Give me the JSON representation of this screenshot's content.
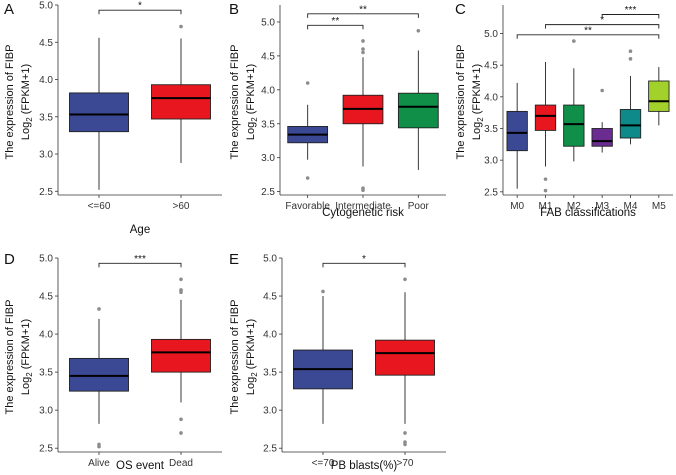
{
  "chart_data": [
    {
      "panel": "A",
      "type": "box",
      "title": "",
      "xlabel": "Age",
      "ylabel_line1": "The expression of FIBP",
      "ylabel_line2": "Log",
      "ylabel_sub": "2",
      "ylabel_tail": " (FPKM+1)",
      "ylim": [
        2.45,
        5.0
      ],
      "yticks": [
        2.5,
        3.0,
        3.5,
        4.0,
        4.5,
        5.0
      ],
      "groups": [
        {
          "label": "<=60",
          "color": "#3b4994",
          "min": 2.52,
          "q1": 3.3,
          "median": 3.53,
          "q3": 3.82,
          "max": 4.56,
          "outliers": []
        },
        {
          "label": ">60",
          "color": "#e8171f",
          "min": 2.88,
          "q1": 3.47,
          "median": 3.75,
          "q3": 3.93,
          "max": 4.55,
          "outliers": [
            4.71
          ]
        }
      ],
      "brackets": [
        {
          "from": 0,
          "to": 1,
          "y": 4.93,
          "label": "*",
          "tier": 0
        }
      ]
    },
    {
      "panel": "B",
      "type": "box",
      "title": "",
      "xlabel": "Cytogenetic risk",
      "ylabel_line1": "The expression of FIBP",
      "ylabel_line2": "Log",
      "ylabel_sub": "2",
      "ylabel_tail": " (FPKM+1)",
      "ylim": [
        2.45,
        5.25
      ],
      "yticks": [
        2.5,
        3.0,
        3.5,
        4.0,
        4.5,
        5.0
      ],
      "groups": [
        {
          "label": "Favorable",
          "color": "#3b4994",
          "min": 2.97,
          "q1": 3.22,
          "median": 3.34,
          "q3": 3.46,
          "max": 3.78,
          "outliers": [
            4.1,
            2.7
          ]
        },
        {
          "label": "Intermediate",
          "color": "#e8171f",
          "min": 2.87,
          "q1": 3.5,
          "median": 3.72,
          "q3": 3.92,
          "max": 4.48,
          "outliers": [
            4.55,
            4.6,
            4.72,
            2.55,
            2.52
          ]
        },
        {
          "label": "Poor",
          "color": "#0f8f48",
          "min": 2.82,
          "q1": 3.44,
          "median": 3.75,
          "q3": 3.95,
          "max": 4.58,
          "outliers": [
            4.87
          ]
        }
      ],
      "brackets": [
        {
          "from": 0,
          "to": 1,
          "y": 4.95,
          "label": "**",
          "tier": 0
        },
        {
          "from": 0,
          "to": 2,
          "y": 5.12,
          "label": "**",
          "tier": 1
        }
      ]
    },
    {
      "panel": "C",
      "type": "box",
      "title": "",
      "xlabel": "FAB classifications",
      "ylabel_line1": "The expression of FIBP",
      "ylabel_line2": "Log",
      "ylabel_sub": "2",
      "ylabel_tail": " (FPKM+1)",
      "ylim": [
        2.45,
        5.45
      ],
      "yticks": [
        2.5,
        3.0,
        3.5,
        4.0,
        4.5,
        5.0
      ],
      "groups": [
        {
          "label": "M0",
          "color": "#3b4994",
          "min": 2.55,
          "q1": 3.15,
          "median": 3.43,
          "q3": 3.77,
          "max": 4.22,
          "outliers": []
        },
        {
          "label": "M1",
          "color": "#e8171f",
          "min": 2.9,
          "q1": 3.47,
          "median": 3.7,
          "q3": 3.87,
          "max": 4.55,
          "outliers": [
            2.7,
            2.52
          ]
        },
        {
          "label": "M2",
          "color": "#0f8f48",
          "min": 2.98,
          "q1": 3.22,
          "median": 3.57,
          "q3": 3.87,
          "max": 4.45,
          "outliers": [
            4.88
          ]
        },
        {
          "label": "M3",
          "color": "#6a2c91",
          "min": 3.12,
          "q1": 3.22,
          "median": 3.3,
          "q3": 3.5,
          "max": 3.6,
          "outliers": [
            4.1
          ]
        },
        {
          "label": "M4",
          "color": "#0f8a8a",
          "min": 3.25,
          "q1": 3.35,
          "median": 3.55,
          "q3": 3.8,
          "max": 4.33,
          "outliers": [
            4.72,
            4.6
          ]
        },
        {
          "label": "M5",
          "color": "#a3d12c",
          "min": 3.55,
          "q1": 3.77,
          "median": 3.93,
          "q3": 4.25,
          "max": 4.47,
          "outliers": []
        }
      ],
      "brackets": [
        {
          "from": 0,
          "to": 5,
          "y": 4.98,
          "label": "**",
          "tier": 0
        },
        {
          "from": 1,
          "to": 5,
          "y": 5.14,
          "label": "*",
          "tier": 1
        },
        {
          "from": 3,
          "to": 5,
          "y": 5.3,
          "label": "***",
          "tier": 2
        }
      ]
    },
    {
      "panel": "D",
      "type": "box",
      "title": "",
      "xlabel": "OS event",
      "ylabel_line1": "The expression of FIBP",
      "ylabel_line2": "Log",
      "ylabel_sub": "2",
      "ylabel_tail": " (FPKM+1)",
      "ylim": [
        2.45,
        5.0
      ],
      "yticks": [
        2.5,
        3.0,
        3.5,
        4.0,
        4.5,
        5.0
      ],
      "groups": [
        {
          "label": "Alive",
          "color": "#3b4994",
          "min": 2.82,
          "q1": 3.25,
          "median": 3.45,
          "q3": 3.68,
          "max": 4.2,
          "outliers": [
            4.33,
            2.55,
            2.52
          ]
        },
        {
          "label": "Dead",
          "color": "#e8171f",
          "min": 3.1,
          "q1": 3.5,
          "median": 3.76,
          "q3": 3.93,
          "max": 4.45,
          "outliers": [
            4.55,
            4.58,
            4.72,
            2.88,
            2.7
          ]
        }
      ],
      "brackets": [
        {
          "from": 0,
          "to": 1,
          "y": 4.93,
          "label": "***",
          "tier": 0
        }
      ]
    },
    {
      "panel": "E",
      "type": "box",
      "title": "",
      "xlabel": "PB blasts(%)",
      "ylabel_line1": "The expression of FIBP",
      "ylabel_line2": "Log",
      "ylabel_sub": "2",
      "ylabel_tail": " (FPKM+1)",
      "ylim": [
        2.45,
        5.0
      ],
      "yticks": [
        2.5,
        3.0,
        3.5,
        4.0,
        4.5,
        5.0
      ],
      "groups": [
        {
          "label": "<=70",
          "color": "#3b4994",
          "min": 2.82,
          "q1": 3.28,
          "median": 3.54,
          "q3": 3.79,
          "max": 4.5,
          "outliers": [
            4.56
          ]
        },
        {
          "label": ">70",
          "color": "#e8171f",
          "min": 2.82,
          "q1": 3.46,
          "median": 3.75,
          "q3": 3.92,
          "max": 4.55,
          "outliers": [
            4.72,
            2.7,
            2.58,
            2.55
          ]
        }
      ],
      "brackets": [
        {
          "from": 0,
          "to": 1,
          "y": 4.93,
          "label": "*",
          "tier": 0
        }
      ]
    }
  ]
}
